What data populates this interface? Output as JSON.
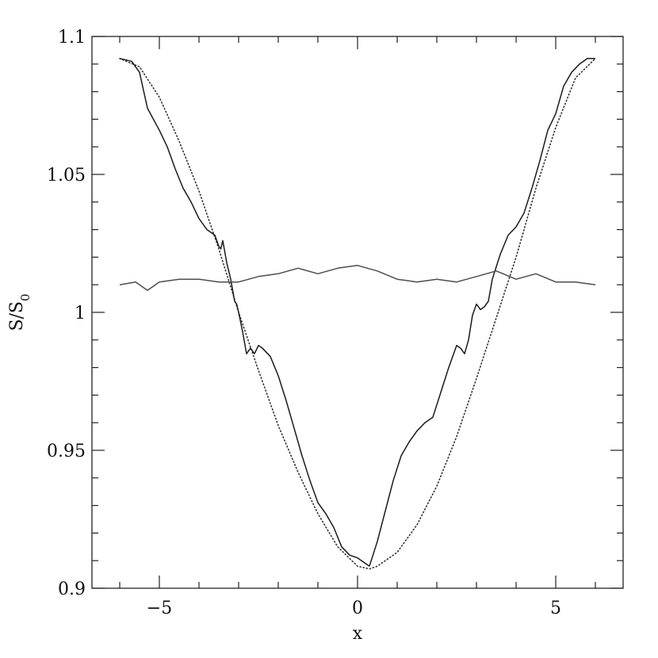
{
  "chart_data": {
    "type": "line",
    "title": "",
    "xlabel": "x",
    "ylabel": "S/S",
    "ylabel_subscript": "0",
    "xlim": [
      -6.7,
      6.7
    ],
    "ylim": [
      0.9,
      1.1
    ],
    "xticks": [
      -5,
      0,
      5
    ],
    "xtick_labels": [
      "−5",
      "0",
      "5"
    ],
    "yticks": [
      0.9,
      0.95,
      1.0,
      1.05,
      1.1
    ],
    "ytick_labels": [
      "0.9",
      "0.95",
      "1",
      "1.05",
      "1.1"
    ],
    "grid": false,
    "legend": "none",
    "series": [
      {
        "style": "dotted",
        "color": "#333333",
        "x": [
          -6.0,
          -5.5,
          -5.0,
          -4.5,
          -4.0,
          -3.5,
          -3.0,
          -2.5,
          -2.0,
          -1.5,
          -1.0,
          -0.5,
          0.0,
          0.3,
          0.5,
          1.0,
          1.5,
          2.0,
          2.5,
          3.0,
          3.5,
          4.0,
          4.5,
          5.0,
          5.5,
          6.0
        ],
        "y": [
          1.092,
          1.089,
          1.078,
          1.062,
          1.044,
          1.023,
          1.0,
          0.979,
          0.959,
          0.942,
          0.927,
          0.915,
          0.908,
          0.907,
          0.908,
          0.913,
          0.923,
          0.937,
          0.955,
          0.976,
          0.998,
          1.02,
          1.045,
          1.067,
          1.085,
          1.092
        ]
      },
      {
        "style": "solid",
        "color": "#1a1a1a",
        "x": [
          -6.0,
          -5.7,
          -5.5,
          -5.3,
          -5.0,
          -4.8,
          -4.6,
          -4.4,
          -4.2,
          -4.0,
          -3.8,
          -3.6,
          -3.5,
          -3.45,
          -3.4,
          -3.3,
          -3.2,
          -3.1,
          -3.05,
          -3.0,
          -2.9,
          -2.8,
          -2.7,
          -2.6,
          -2.5,
          -2.4,
          -2.2,
          -2.0,
          -1.8,
          -1.6,
          -1.4,
          -1.2,
          -1.0,
          -0.8,
          -0.6,
          -0.4,
          -0.2,
          0.0,
          0.2,
          0.3
        ],
        "y": [
          1.092,
          1.091,
          1.087,
          1.074,
          1.066,
          1.06,
          1.052,
          1.045,
          1.04,
          1.034,
          1.03,
          1.028,
          1.024,
          1.023,
          1.026,
          1.018,
          1.012,
          1.004,
          1.003,
          1.0,
          0.993,
          0.985,
          0.987,
          0.985,
          0.988,
          0.987,
          0.984,
          0.977,
          0.968,
          0.958,
          0.948,
          0.939,
          0.931,
          0.927,
          0.922,
          0.915,
          0.912,
          0.911,
          0.909,
          0.908
        ]
      },
      {
        "style": "solid",
        "color": "#1a1a1a",
        "x": [
          0.3,
          0.5,
          0.7,
          0.9,
          1.1,
          1.3,
          1.5,
          1.7,
          1.9,
          2.1,
          2.3,
          2.5,
          2.6,
          2.7,
          2.8,
          2.9,
          3.0,
          3.1,
          3.2,
          3.3,
          3.4,
          3.6,
          3.8,
          4.0,
          4.2,
          4.4,
          4.6,
          4.8,
          5.0,
          5.2,
          5.4,
          5.6,
          5.8,
          6.0
        ],
        "y": [
          0.908,
          0.917,
          0.928,
          0.939,
          0.948,
          0.953,
          0.957,
          0.96,
          0.962,
          0.971,
          0.98,
          0.988,
          0.987,
          0.985,
          0.99,
          0.999,
          1.003,
          1.001,
          1.002,
          1.004,
          1.012,
          1.021,
          1.028,
          1.031,
          1.036,
          1.045,
          1.055,
          1.066,
          1.072,
          1.082,
          1.087,
          1.09,
          1.092,
          1.092
        ]
      },
      {
        "style": "solid",
        "color": "#4d4d4d",
        "x": [
          -6.0,
          -5.6,
          -5.3,
          -5.0,
          -4.5,
          -4.0,
          -3.5,
          -3.0,
          -2.5,
          -2.0,
          -1.5,
          -1.0,
          -0.5,
          0.0,
          0.5,
          1.0,
          1.5,
          2.0,
          2.5,
          3.0,
          3.5,
          4.0,
          4.5,
          5.0,
          5.5,
          6.0
        ],
        "y": [
          1.01,
          1.011,
          1.008,
          1.011,
          1.012,
          1.012,
          1.011,
          1.011,
          1.013,
          1.014,
          1.016,
          1.014,
          1.016,
          1.017,
          1.015,
          1.012,
          1.011,
          1.012,
          1.011,
          1.013,
          1.015,
          1.012,
          1.014,
          1.011,
          1.011,
          1.01
        ]
      }
    ]
  }
}
